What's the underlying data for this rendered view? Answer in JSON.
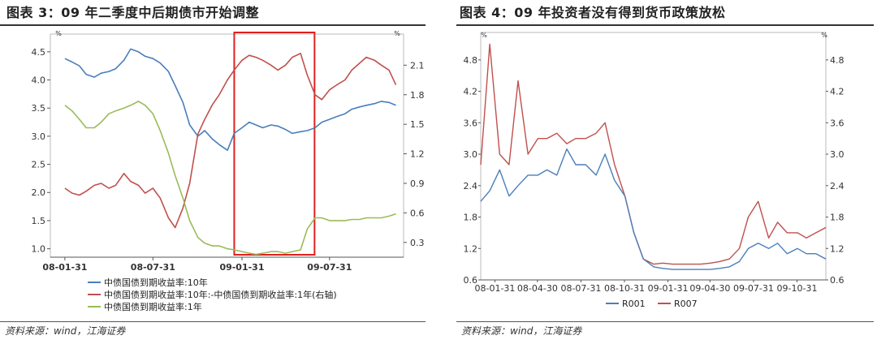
{
  "charts": [
    {
      "title": "图表 3：09 年二季度中后期债市开始调整",
      "source": "资料来源：wind，江海证券",
      "chart_data": {
        "type": "line",
        "y_unit_left": "%",
        "y_unit_right": "%",
        "x_ticks": [
          "08-01-31",
          "08-07-31",
          "09-01-31",
          "09-07-31"
        ],
        "y_left_ticks": [
          "1.0",
          "1.5",
          "2.0",
          "2.5",
          "3.0",
          "3.5",
          "4.0",
          "4.5"
        ],
        "y_right_ticks": [
          "0.3",
          "0.6",
          "0.9",
          "1.2",
          "1.5",
          "1.8",
          "2.1"
        ],
        "ylim_left": [
          0.85,
          4.7
        ],
        "ylim_right": [
          0.15,
          2.35
        ],
        "highlight_x_range": [
          "09-01-15",
          "09-06-30"
        ],
        "legend": "bottom",
        "series": [
          {
            "name": "中债国债到期收益率:10年",
            "axis": "left",
            "color": "#4a7ebb",
            "x": [
              "08-01-31",
              "08-02-15",
              "08-03-01",
              "08-03-15",
              "08-04-01",
              "08-04-15",
              "08-05-01",
              "08-05-15",
              "08-06-01",
              "08-06-15",
              "08-07-01",
              "08-07-15",
              "08-07-31",
              "08-08-15",
              "08-09-01",
              "08-09-15",
              "08-10-01",
              "08-10-15",
              "08-11-01",
              "08-11-15",
              "08-12-01",
              "08-12-15",
              "09-01-01",
              "09-01-15",
              "09-01-31",
              "09-02-15",
              "09-03-01",
              "09-03-15",
              "09-04-01",
              "09-04-15",
              "09-05-01",
              "09-05-15",
              "09-06-01",
              "09-06-15",
              "09-07-01",
              "09-07-15",
              "09-07-31",
              "09-08-15",
              "09-09-01",
              "09-09-15",
              "09-10-01",
              "09-10-15",
              "09-11-01",
              "09-11-15",
              "09-12-01",
              "09-12-15"
            ],
            "values": [
              4.38,
              4.32,
              4.25,
              4.1,
              4.05,
              4.12,
              4.15,
              4.2,
              4.35,
              4.55,
              4.5,
              4.42,
              4.38,
              4.3,
              4.15,
              3.9,
              3.6,
              3.2,
              3.0,
              3.1,
              2.95,
              2.85,
              2.75,
              3.05,
              3.15,
              3.25,
              3.2,
              3.15,
              3.2,
              3.18,
              3.12,
              3.05,
              3.08,
              3.1,
              3.15,
              3.25,
              3.3,
              3.35,
              3.4,
              3.48,
              3.52,
              3.55,
              3.58,
              3.62,
              3.6,
              3.55
            ]
          },
          {
            "name": "中债国债到期收益率:10年:-中债国债到期收益率:1年(右轴)",
            "axis": "right",
            "color": "#c0504d",
            "x": [
              "08-01-31",
              "08-02-15",
              "08-03-01",
              "08-03-15",
              "08-04-01",
              "08-04-15",
              "08-05-01",
              "08-05-15",
              "08-06-01",
              "08-06-15",
              "08-07-01",
              "08-07-15",
              "08-07-31",
              "08-08-15",
              "08-09-01",
              "08-09-15",
              "08-10-01",
              "08-10-15",
              "08-11-01",
              "08-11-15",
              "08-12-01",
              "08-12-15",
              "09-01-01",
              "09-01-15",
              "09-01-31",
              "09-02-15",
              "09-03-01",
              "09-03-15",
              "09-04-01",
              "09-04-15",
              "09-05-01",
              "09-05-15",
              "09-06-01",
              "09-06-15",
              "09-07-01",
              "09-07-15",
              "09-07-31",
              "09-08-15",
              "09-09-01",
              "09-09-15",
              "09-10-01",
              "09-10-15",
              "09-11-01",
              "09-11-15",
              "09-12-01",
              "09-12-15"
            ],
            "values": [
              0.85,
              0.8,
              0.78,
              0.82,
              0.88,
              0.9,
              0.85,
              0.88,
              1.0,
              0.92,
              0.88,
              0.8,
              0.85,
              0.75,
              0.55,
              0.45,
              0.65,
              0.9,
              1.4,
              1.55,
              1.7,
              1.8,
              1.95,
              2.05,
              2.15,
              2.2,
              2.18,
              2.15,
              2.1,
              2.05,
              2.1,
              2.18,
              2.22,
              2.0,
              1.8,
              1.75,
              1.85,
              1.9,
              1.95,
              2.05,
              2.12,
              2.18,
              2.15,
              2.1,
              2.05,
              1.9
            ]
          },
          {
            "name": "中债国债到期收益率:1年",
            "axis": "left",
            "color": "#9bbb59",
            "x": [
              "08-01-31",
              "08-02-15",
              "08-03-01",
              "08-03-15",
              "08-04-01",
              "08-04-15",
              "08-05-01",
              "08-05-15",
              "08-06-01",
              "08-06-15",
              "08-07-01",
              "08-07-15",
              "08-07-31",
              "08-08-15",
              "08-09-01",
              "08-09-15",
              "08-10-01",
              "08-10-15",
              "08-11-01",
              "08-11-15",
              "08-12-01",
              "08-12-15",
              "09-01-01",
              "09-01-15",
              "09-01-31",
              "09-02-15",
              "09-03-01",
              "09-03-15",
              "09-04-01",
              "09-04-15",
              "09-05-01",
              "09-05-15",
              "09-06-01",
              "09-06-15",
              "09-07-01",
              "09-07-15",
              "09-07-31",
              "09-08-15",
              "09-09-01",
              "09-09-15",
              "09-10-01",
              "09-10-15",
              "09-11-01",
              "09-11-15",
              "09-12-01",
              "09-12-15"
            ],
            "values": [
              3.55,
              3.45,
              3.3,
              3.15,
              3.15,
              3.25,
              3.4,
              3.45,
              3.5,
              3.55,
              3.62,
              3.55,
              3.4,
              3.1,
              2.7,
              2.3,
              1.9,
              1.5,
              1.2,
              1.1,
              1.05,
              1.05,
              1.0,
              0.98,
              0.95,
              0.92,
              0.9,
              0.92,
              0.95,
              0.95,
              0.92,
              0.95,
              0.98,
              1.35,
              1.55,
              1.55,
              1.5,
              1.5,
              1.5,
              1.52,
              1.52,
              1.55,
              1.55,
              1.55,
              1.58,
              1.62
            ]
          }
        ]
      }
    },
    {
      "title": "图表 4：09 年投资者没有得到货币政策放松",
      "source": "资料来源：wind，江海证券",
      "chart_data": {
        "type": "line",
        "y_unit_left": "%",
        "y_unit_right": "%",
        "x_ticks": [
          "08-01-31",
          "08-04-30",
          "08-07-31",
          "08-10-31",
          "09-01-31",
          "09-04-30",
          "09-07-31",
          "09-10-31"
        ],
        "y_ticks": [
          "0.6",
          "1.2",
          "1.8",
          "2.4",
          "3.0",
          "3.6",
          "4.2",
          "4.8"
        ],
        "ylim": [
          0.6,
          5.2
        ],
        "legend": "bottom",
        "series": [
          {
            "name": "R001",
            "color": "#4a7ebb",
            "x": [
              "08-01-01",
              "08-01-20",
              "08-02-10",
              "08-03-01",
              "08-03-20",
              "08-04-10",
              "08-05-01",
              "08-05-20",
              "08-06-10",
              "08-07-01",
              "08-07-20",
              "08-08-10",
              "08-09-01",
              "08-09-20",
              "08-10-10",
              "08-11-01",
              "08-11-20",
              "08-12-10",
              "09-01-01",
              "09-01-20",
              "09-02-10",
              "09-03-01",
              "09-03-20",
              "09-04-10",
              "09-05-01",
              "09-05-20",
              "09-06-10",
              "09-07-01",
              "09-07-20",
              "09-08-10",
              "09-09-01",
              "09-09-20",
              "09-10-10",
              "09-11-01",
              "09-11-20",
              "09-12-10",
              "09-12-31"
            ],
            "values": [
              2.1,
              2.3,
              2.7,
              2.2,
              2.4,
              2.6,
              2.6,
              2.7,
              2.6,
              3.1,
              2.8,
              2.8,
              2.6,
              3.0,
              2.5,
              2.2,
              1.5,
              1.0,
              0.85,
              0.82,
              0.8,
              0.8,
              0.8,
              0.8,
              0.8,
              0.82,
              0.85,
              0.95,
              1.2,
              1.3,
              1.2,
              1.3,
              1.1,
              1.2,
              1.1,
              1.1,
              1.0
            ]
          },
          {
            "name": "R007",
            "color": "#c0504d",
            "x": [
              "08-01-01",
              "08-01-20",
              "08-02-10",
              "08-03-01",
              "08-03-20",
              "08-04-10",
              "08-05-01",
              "08-05-20",
              "08-06-10",
              "08-07-01",
              "08-07-20",
              "08-08-10",
              "08-09-01",
              "08-09-20",
              "08-10-10",
              "08-11-01",
              "08-11-20",
              "08-12-10",
              "09-01-01",
              "09-01-20",
              "09-02-10",
              "09-03-01",
              "09-03-20",
              "09-04-10",
              "09-05-01",
              "09-05-20",
              "09-06-10",
              "09-07-01",
              "09-07-20",
              "09-08-10",
              "09-09-01",
              "09-09-20",
              "09-10-10",
              "09-11-01",
              "09-11-20",
              "09-12-10",
              "09-12-31"
            ],
            "values": [
              2.8,
              5.1,
              3.0,
              2.8,
              4.4,
              3.0,
              3.3,
              3.3,
              3.4,
              3.2,
              3.3,
              3.3,
              3.4,
              3.6,
              2.8,
              2.2,
              1.5,
              1.0,
              0.9,
              0.92,
              0.9,
              0.9,
              0.9,
              0.9,
              0.92,
              0.95,
              1.0,
              1.2,
              1.8,
              2.1,
              1.4,
              1.7,
              1.5,
              1.5,
              1.4,
              1.5,
              1.6
            ]
          }
        ]
      }
    }
  ]
}
